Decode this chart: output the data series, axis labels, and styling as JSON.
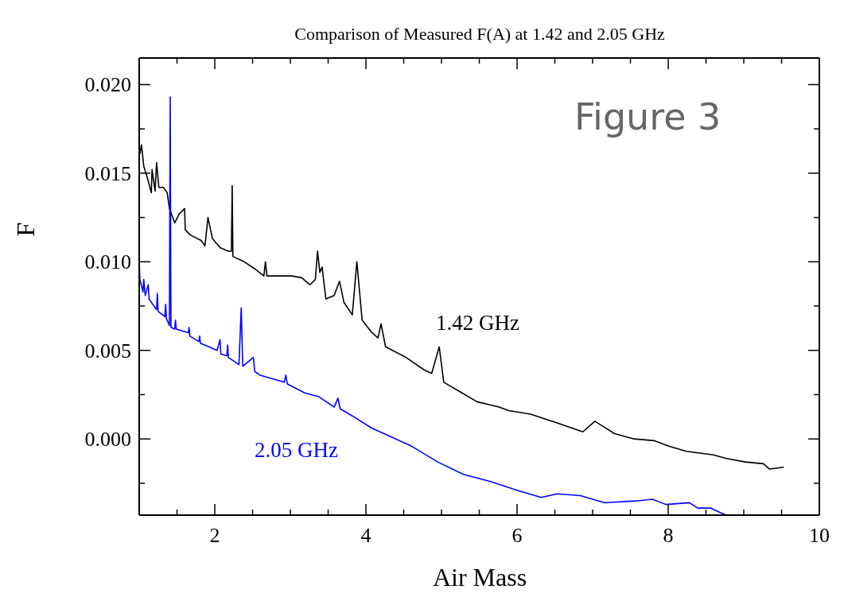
{
  "chart_data": {
    "type": "line",
    "title": "Comparison of Measured F(A) at 1.42 and 2.05 GHz",
    "xlabel": "Air Mass",
    "ylabel": "F",
    "annotations": [
      "Figure 3"
    ],
    "xlim": [
      1,
      10
    ],
    "xticks": [
      {
        "value": 1,
        "label": null
      },
      {
        "value": 1.5,
        "label": null
      },
      2,
      {
        "value": 2.5,
        "label": null
      },
      {
        "value": 3,
        "label": null
      },
      {
        "value": 3.5,
        "label": null
      },
      4,
      {
        "value": 4.5,
        "label": null
      },
      {
        "value": 5,
        "label": null
      },
      {
        "value": 5.5,
        "label": null
      },
      6,
      {
        "value": 6.5,
        "label": null
      },
      {
        "value": 7,
        "label": null
      },
      {
        "value": 7.5,
        "label": null
      },
      8,
      {
        "value": 8.5,
        "label": null
      },
      {
        "value": 9,
        "label": null
      },
      {
        "value": 9.5,
        "label": null
      },
      10
    ],
    "ylim": [
      -0.0043,
      0.0215
    ],
    "yticks": [
      {
        "value": -0.0025,
        "label": null
      },
      {
        "value": 0,
        "label": "0.000"
      },
      {
        "value": 0.0025,
        "label": null
      },
      {
        "value": 0.005,
        "label": "0.005"
      },
      {
        "value": 0.0075,
        "label": null
      },
      {
        "value": 0.01,
        "label": "0.010"
      },
      {
        "value": 0.0125,
        "label": null
      },
      {
        "value": 0.015,
        "label": "0.015"
      },
      {
        "value": 0.0175,
        "label": null
      },
      {
        "value": 0.02,
        "label": "0.020"
      }
    ],
    "series": [
      {
        "name": "1.42 GHz",
        "color": "#000000",
        "x": [
          1.01,
          1.03,
          1.06,
          1.11,
          1.16,
          1.17,
          1.21,
          1.23,
          1.26,
          1.32,
          1.37,
          1.4,
          1.47,
          1.53,
          1.6,
          1.61,
          1.68,
          1.82,
          1.87,
          1.91,
          1.97,
          2.07,
          2.18,
          2.22,
          2.23,
          2.24,
          2.39,
          2.53,
          2.65,
          2.67,
          2.69,
          2.84,
          3.02,
          3.15,
          3.26,
          3.33,
          3.36,
          3.39,
          3.42,
          3.47,
          3.58,
          3.65,
          3.71,
          3.82,
          3.88,
          3.95,
          4.08,
          4.16,
          4.2,
          4.26,
          4.53,
          4.77,
          4.87,
          4.97,
          5.03,
          5.23,
          5.47,
          5.76,
          5.89,
          6.18,
          6.53,
          6.87,
          7.03,
          7.29,
          7.55,
          7.82,
          8.0,
          8.24,
          8.6,
          8.77,
          9.02,
          9.26,
          9.34,
          9.53
        ],
        "values": [
          0.0161,
          0.0166,
          0.0154,
          0.0147,
          0.0139,
          0.0152,
          0.014,
          0.0156,
          0.0142,
          0.0142,
          0.0139,
          0.013,
          0.0122,
          0.0127,
          0.013,
          0.0118,
          0.0115,
          0.0112,
          0.0109,
          0.0125,
          0.0113,
          0.0108,
          0.0106,
          0.0106,
          0.0143,
          0.0103,
          0.01,
          0.0096,
          0.0092,
          0.01,
          0.0092,
          0.0092,
          0.0092,
          0.0091,
          0.0087,
          0.009,
          0.0106,
          0.0094,
          0.0097,
          0.0079,
          0.0081,
          0.0089,
          0.0077,
          0.007,
          0.01,
          0.0067,
          0.006,
          0.0057,
          0.0065,
          0.0052,
          0.0046,
          0.0039,
          0.0037,
          0.0052,
          0.0032,
          0.0027,
          0.0021,
          0.0018,
          0.0016,
          0.0014,
          0.0009,
          0.0004,
          0.001,
          0.0003,
          0.0,
          -0.0001,
          -0.0004,
          -0.0007,
          -0.0009,
          -0.0011,
          -0.0013,
          -0.0014,
          -0.0017,
          -0.0016
        ]
      },
      {
        "name": "2.05 GHz",
        "color": "#0000ff",
        "x": [
          1.0,
          1.01,
          1.05,
          1.06,
          1.08,
          1.12,
          1.13,
          1.23,
          1.24,
          1.25,
          1.34,
          1.35,
          1.36,
          1.4,
          1.41,
          1.42,
          1.47,
          1.48,
          1.49,
          1.65,
          1.66,
          1.67,
          1.79,
          1.8,
          1.81,
          2.03,
          2.07,
          2.08,
          2.16,
          2.17,
          2.18,
          2.32,
          2.35,
          2.37,
          2.51,
          2.53,
          2.6,
          2.92,
          2.94,
          2.96,
          3.19,
          3.37,
          3.58,
          3.63,
          3.66,
          3.82,
          4.08,
          4.24,
          4.6,
          4.95,
          5.29,
          5.65,
          6.0,
          6.32,
          6.53,
          6.84,
          7.16,
          7.58,
          7.79,
          7.97,
          8.28,
          8.39,
          8.56,
          8.71,
          8.77
        ],
        "values": [
          0.0099,
          0.009,
          0.0083,
          0.009,
          0.0081,
          0.0087,
          0.0079,
          0.0073,
          0.0082,
          0.0072,
          0.0069,
          0.0076,
          0.0068,
          0.0064,
          0.0193,
          0.0063,
          0.0062,
          0.0067,
          0.0062,
          0.006,
          0.0063,
          0.0058,
          0.0055,
          0.0058,
          0.0054,
          0.005,
          0.0056,
          0.0048,
          0.0047,
          0.0053,
          0.0046,
          0.0042,
          0.0074,
          0.0041,
          0.0046,
          0.0038,
          0.0036,
          0.0032,
          0.0036,
          0.0031,
          0.0026,
          0.0024,
          0.0018,
          0.0023,
          0.0017,
          0.0013,
          0.0006,
          0.0003,
          -0.0004,
          -0.0013,
          -0.002,
          -0.0024,
          -0.0029,
          -0.0033,
          -0.0031,
          -0.0032,
          -0.0036,
          -0.0035,
          -0.0034,
          -0.0037,
          -0.0036,
          -0.0039,
          -0.0039,
          -0.0042,
          -0.0043
        ]
      }
    ]
  }
}
